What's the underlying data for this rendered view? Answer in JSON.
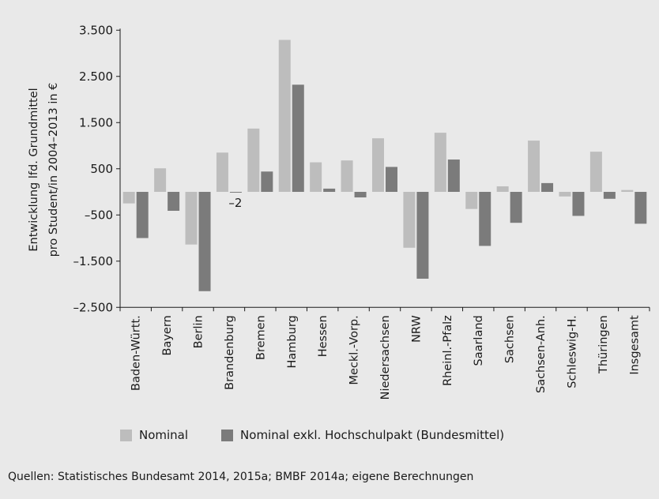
{
  "chart_data": {
    "type": "bar",
    "ylabel_lines": [
      "Entwicklung lfd. Grundmittel",
      "pro Student/in 2004–2013 in €"
    ],
    "yticks": [
      3500,
      2500,
      1500,
      500,
      -500,
      -1500,
      -2500
    ],
    "ytick_labels": [
      "3.500",
      "2.500",
      "1.500",
      "500",
      "–500",
      "–1.500",
      "–2.500"
    ],
    "ylim": [
      -2500,
      3500
    ],
    "categories": [
      "Baden-Württ.",
      "Bayern",
      "Berlin",
      "Brandenburg",
      "Bremen",
      "Hamburg",
      "Hessen",
      "Meckl.-Vorp.",
      "Niedersachsen",
      "NRW",
      "Rheinl.-Pfalz",
      "Saarland",
      "Sachsen",
      "Sachsen-Anh.",
      "Schleswig-H.",
      "Thüringen",
      "Insgesamt"
    ],
    "series": [
      {
        "name": "Nominal",
        "color": "#bdbdbd",
        "values": [
          -250,
          510,
          -1140,
          850,
          1370,
          3290,
          640,
          680,
          1160,
          -1210,
          1280,
          -370,
          120,
          1110,
          -100,
          870,
          40
        ]
      },
      {
        "name": "Nominal exkl. Hochschulpakt  (Bundesmittel)",
        "color": "#7b7b7b",
        "values": [
          -1000,
          -410,
          -2150,
          -2,
          440,
          2320,
          70,
          -120,
          540,
          -1880,
          700,
          -1170,
          -670,
          190,
          -520,
          -150,
          -690
        ]
      }
    ],
    "annotations": [
      {
        "text": "–2",
        "category": "Brandenburg"
      }
    ],
    "grid": false,
    "legend": "bottom"
  },
  "legend": {
    "items": [
      {
        "label": "Nominal",
        "color": "#bdbdbd"
      },
      {
        "label": "Nominal exkl. Hochschulpakt  (Bundesmittel)",
        "color": "#7b7b7b"
      }
    ]
  },
  "source_text": "Quellen: Statistisches Bundesamt 2014, 2015a; BMBF 2014a; eigene Berechnungen"
}
